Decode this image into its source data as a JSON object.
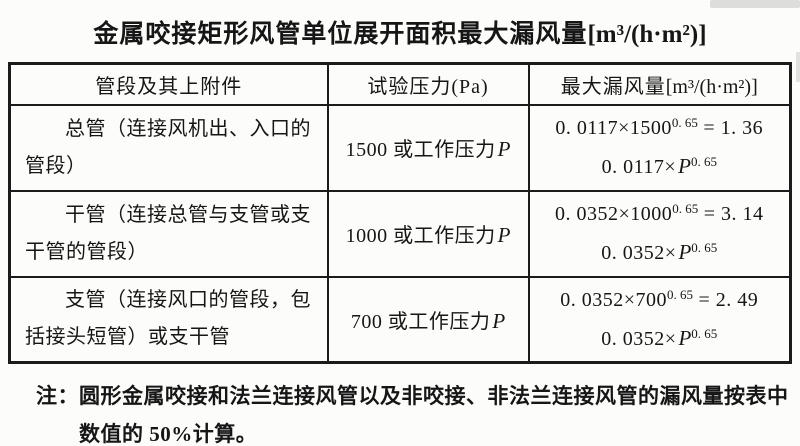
{
  "title": {
    "main": "金属咬接矩形风管单位展开面积最大漏风量",
    "unit": "[m³/(h·m²)]"
  },
  "table": {
    "headers": {
      "segment": "管段及其上附件",
      "pressure": "试验压力(Pa)",
      "leakage_prefix": "最大漏风量",
      "leakage_unit": "[m³/(h·m²)]"
    },
    "rows": [
      {
        "segment": "总管（连接风机出、入口的管段）",
        "pressure_text": "1500 或工作压力",
        "pressure_var": "P",
        "formula_value": {
          "pre": "0. 0117×1500",
          "exp": "0. 65",
          "post": " = 1. 36"
        },
        "formula_general": {
          "pre": "0. 0117×",
          "var": "P",
          "exp": "0. 65"
        }
      },
      {
        "segment": "干管（连接总管与支管或支干管的管段）",
        "pressure_text": "1000 或工作压力",
        "pressure_var": "P",
        "formula_value": {
          "pre": "0. 0352×1000",
          "exp": "0. 65",
          "post": " = 3. 14"
        },
        "formula_general": {
          "pre": "0. 0352×",
          "var": "P",
          "exp": "0. 65"
        }
      },
      {
        "segment": "支管（连接风口的管段，包括接头短管）或支干管",
        "pressure_text": "700 或工作压力",
        "pressure_var": "P",
        "formula_value": {
          "pre": "0. 0352×700",
          "exp": "0. 65",
          "post": " = 2. 49"
        },
        "formula_general": {
          "pre": "0. 0352×",
          "var": "P",
          "exp": "0. 65"
        }
      }
    ]
  },
  "note": {
    "label": "注：",
    "lines": [
      "圆形金属咬接和法兰连接风管以及非咬接、非法兰连接风管的漏风量按表中",
      "数值的 50%计算。"
    ]
  },
  "colors": {
    "page_background": "#fcfcfa",
    "text": "#161616",
    "border": "#1b1b1b"
  }
}
